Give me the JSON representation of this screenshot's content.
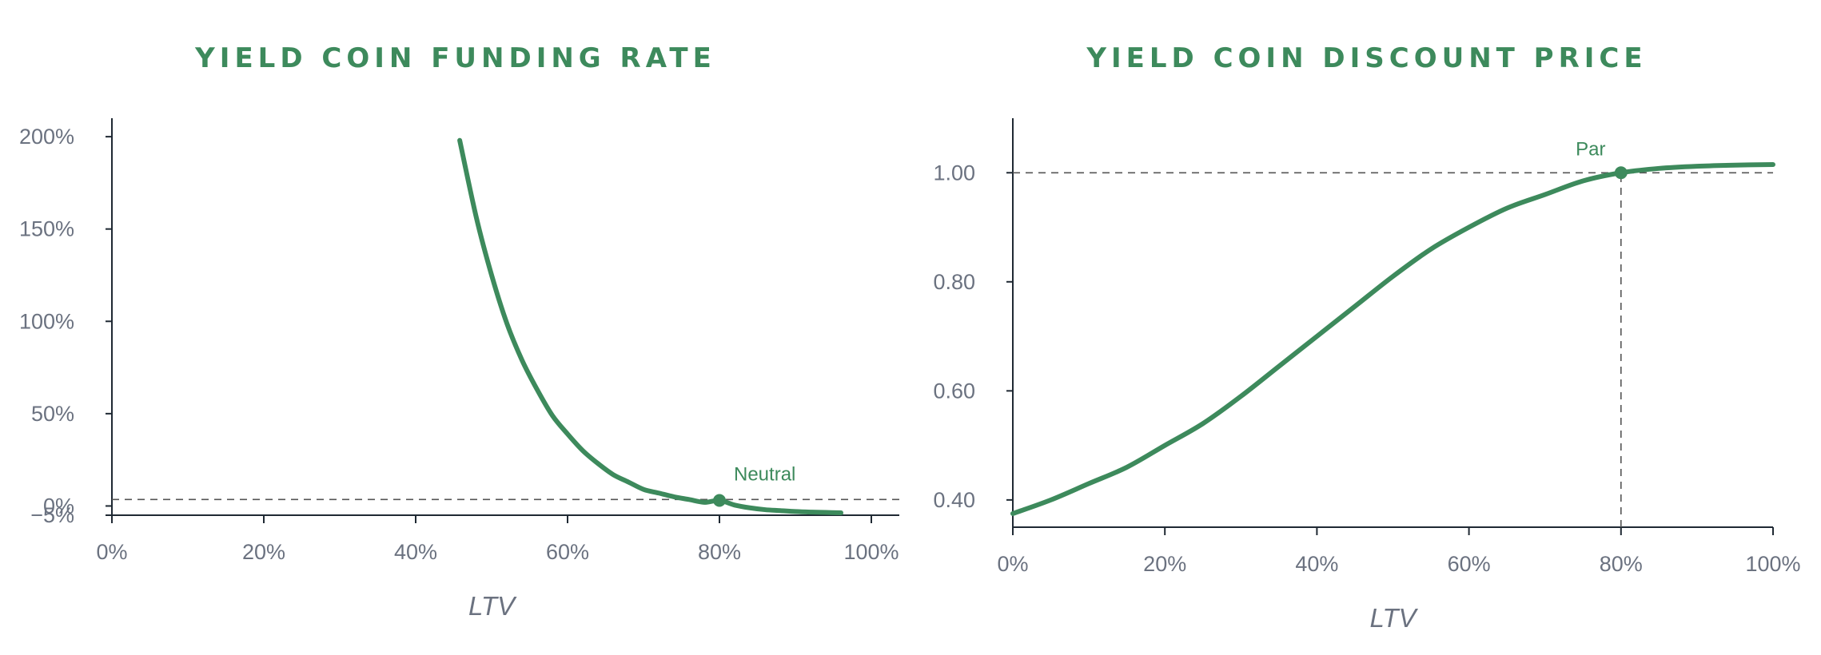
{
  "theme": {
    "accent": "#3d8a5c",
    "axis": "#1f2933",
    "tick_text": "#6b7280",
    "guide": "#555555"
  },
  "chart_data": [
    {
      "type": "line",
      "title": "YIELD COIN FUNDING RATE",
      "xlabel": "LTV",
      "ylabel": "",
      "xlim": [
        0,
        1
      ],
      "ylim": [
        -0.05,
        2.1
      ],
      "x_ticks": [
        0,
        0.2,
        0.4,
        0.6,
        0.8,
        1.0
      ],
      "x_tick_labels": [
        "0%",
        "20%",
        "40%",
        "60%",
        "80%",
        "100%"
      ],
      "y_ticks": [
        -0.05,
        0,
        0.5,
        1.0,
        1.5,
        2.0
      ],
      "y_tick_labels": [
        "−5%",
        "0%",
        "50%",
        "100%",
        "150%",
        "200%"
      ],
      "grid": false,
      "series": [
        {
          "x": [
            0.458,
            0.48,
            0.5,
            0.52,
            0.54,
            0.56,
            0.58,
            0.6,
            0.62,
            0.64,
            0.66,
            0.68,
            0.7,
            0.72,
            0.74,
            0.76,
            0.78,
            0.8,
            0.82,
            0.84,
            0.86,
            0.88,
            0.9,
            0.92,
            0.94,
            0.96
          ],
          "y": [
            1.98,
            1.56,
            1.25,
            0.99,
            0.79,
            0.63,
            0.49,
            0.39,
            0.3,
            0.23,
            0.17,
            0.13,
            0.09,
            0.07,
            0.05,
            0.035,
            0.02,
            0.03,
            0.005,
            -0.01,
            -0.02,
            -0.025,
            -0.03,
            -0.033,
            -0.035,
            -0.037
          ]
        }
      ],
      "reference_lines": [
        {
          "orientation": "horizontal",
          "y": 0.035
        }
      ],
      "annotations": [
        {
          "text": "Neutral",
          "x": 0.8,
          "y": 0.03
        }
      ]
    },
    {
      "type": "line",
      "title": "YIELD COIN DISCOUNT PRICE",
      "xlabel": "LTV",
      "ylabel": "",
      "xlim": [
        0,
        1
      ],
      "ylim": [
        0.35,
        1.1
      ],
      "x_ticks": [
        0,
        0.2,
        0.4,
        0.6,
        0.8,
        1.0
      ],
      "x_tick_labels": [
        "0%",
        "20%",
        "40%",
        "60%",
        "80%",
        "100%"
      ],
      "y_ticks": [
        0.4,
        0.6,
        0.8,
        1.0
      ],
      "y_tick_labels": [
        "0.40",
        "0.60",
        "0.80",
        "1.00"
      ],
      "grid": false,
      "series": [
        {
          "x": [
            0,
            0.05,
            0.1,
            0.15,
            0.2,
            0.25,
            0.3,
            0.35,
            0.4,
            0.45,
            0.5,
            0.55,
            0.6,
            0.65,
            0.7,
            0.75,
            0.8,
            0.85,
            0.9,
            0.95,
            1.0
          ],
          "y": [
            0.375,
            0.4,
            0.43,
            0.46,
            0.5,
            0.54,
            0.59,
            0.645,
            0.7,
            0.755,
            0.81,
            0.86,
            0.9,
            0.935,
            0.96,
            0.985,
            1.0,
            1.008,
            1.012,
            1.014,
            1.015
          ]
        }
      ],
      "reference_lines": [
        {
          "orientation": "horizontal",
          "y": 1.0
        },
        {
          "orientation": "vertical",
          "x": 0.8
        }
      ],
      "annotations": [
        {
          "text": "Par",
          "x": 0.8,
          "y": 1.0
        }
      ]
    }
  ]
}
